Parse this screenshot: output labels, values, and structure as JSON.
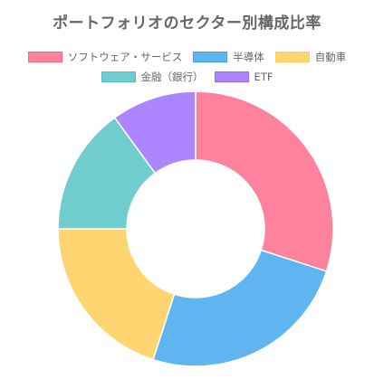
{
  "chart_data": {
    "type": "pie",
    "variant": "doughnut",
    "title": "ポートフォリオのセクター別構成比率",
    "categories": [
      "ソフトウェア・サービス",
      "半導体",
      "自動車",
      "金融（銀行）",
      "ETF"
    ],
    "series": [
      {
        "values": [
          30,
          25,
          20,
          15,
          10
        ]
      }
    ],
    "colors": [
      "#ff829d",
      "#5eb5ef",
      "#ffd572",
      "#6fcdcd",
      "#ad85ff"
    ],
    "border_colors": [
      "#ff6384",
      "#36a2eb",
      "#ffce56",
      "#4bc0c0",
      "#9966ff"
    ],
    "legend_position": "top",
    "legend_rows": [
      [
        0,
        1,
        2
      ],
      [
        3,
        4
      ]
    ],
    "start_angle": "top",
    "direction": "clockwise"
  }
}
